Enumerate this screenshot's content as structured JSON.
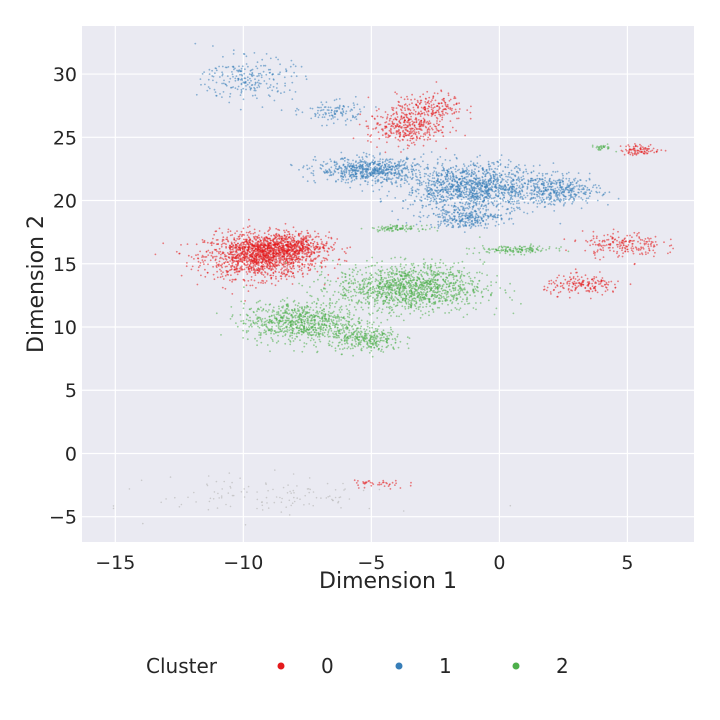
{
  "chart_data": {
    "type": "scatter",
    "title": "",
    "xlabel": "Dimension 1",
    "ylabel": "Dimension 2",
    "xlim": [
      -16.3,
      7.6
    ],
    "ylim": [
      -7.0,
      33.8
    ],
    "xticks": [
      -15,
      -10,
      -5,
      0,
      5
    ],
    "xtick_labels": [
      "−15",
      "−10",
      "−5",
      "0",
      "5"
    ],
    "yticks": [
      -5,
      0,
      5,
      10,
      15,
      20,
      25,
      30
    ],
    "ytick_labels": [
      "−5",
      "0",
      "5",
      "10",
      "15",
      "20",
      "25",
      "30"
    ],
    "grid": true,
    "background_color": "#eaeaf2",
    "grid_color": "#ffffff",
    "legend": {
      "title": "Cluster",
      "placement": "bottom-center-outside",
      "entries": [
        {
          "label": "0",
          "color": "#e41a1c"
        },
        {
          "label": "1",
          "color": "#377eb8"
        },
        {
          "label": "2",
          "color": "#4daf4a"
        }
      ]
    },
    "unassigned_color": "#bbbbbb",
    "series": [
      {
        "name": "0",
        "color": "#e41a1c",
        "regions": [
          {
            "center": [
              -9.3,
              15.6
            ],
            "spread": [
              2.0,
              1.6
            ],
            "n": 1400
          },
          {
            "center": [
              -8.3,
              16.4
            ],
            "spread": [
              1.5,
              1.0
            ],
            "n": 500
          },
          {
            "center": [
              -3.7,
              25.8
            ],
            "spread": [
              1.3,
              1.2
            ],
            "n": 350
          },
          {
            "center": [
              -2.7,
              27.4
            ],
            "spread": [
              1.2,
              1.0
            ],
            "n": 200
          },
          {
            "center": [
              5.5,
              24.0
            ],
            "spread": [
              0.7,
              0.4
            ],
            "n": 90
          },
          {
            "center": [
              4.8,
              16.5
            ],
            "spread": [
              1.4,
              0.9
            ],
            "n": 200
          },
          {
            "center": [
              3.3,
              13.3
            ],
            "spread": [
              1.4,
              0.7
            ],
            "n": 170
          },
          {
            "center": [
              -4.7,
              -2.4
            ],
            "spread": [
              1.0,
              0.4
            ],
            "n": 40
          }
        ]
      },
      {
        "name": "1",
        "color": "#377eb8",
        "regions": [
          {
            "center": [
              -1.0,
              21.0
            ],
            "spread": [
              2.4,
              1.7
            ],
            "n": 1300
          },
          {
            "center": [
              -5.0,
              22.4
            ],
            "spread": [
              1.9,
              0.9
            ],
            "n": 650
          },
          {
            "center": [
              2.4,
              20.8
            ],
            "spread": [
              1.4,
              1.0
            ],
            "n": 350
          },
          {
            "center": [
              -1.4,
              18.6
            ],
            "spread": [
              1.3,
              0.7
            ],
            "n": 250
          },
          {
            "center": [
              -9.8,
              29.6
            ],
            "spread": [
              1.6,
              1.6
            ],
            "n": 230
          },
          {
            "center": [
              -6.5,
              27.0
            ],
            "spread": [
              1.1,
              0.8
            ],
            "n": 110
          }
        ]
      },
      {
        "name": "2",
        "color": "#4daf4a",
        "regions": [
          {
            "center": [
              -3.5,
              13.1
            ],
            "spread": [
              2.6,
              1.7
            ],
            "n": 1300
          },
          {
            "center": [
              -7.8,
              10.4
            ],
            "spread": [
              2.0,
              1.4
            ],
            "n": 800
          },
          {
            "center": [
              -5.2,
              9.0
            ],
            "spread": [
              1.3,
              0.9
            ],
            "n": 300
          },
          {
            "center": [
              -4.0,
              17.8
            ],
            "spread": [
              0.9,
              0.2
            ],
            "n": 90
          },
          {
            "center": [
              0.6,
              16.1
            ],
            "spread": [
              1.4,
              0.3
            ],
            "n": 140
          },
          {
            "center": [
              4.0,
              24.2
            ],
            "spread": [
              0.4,
              0.2
            ],
            "n": 30
          }
        ]
      }
    ]
  }
}
